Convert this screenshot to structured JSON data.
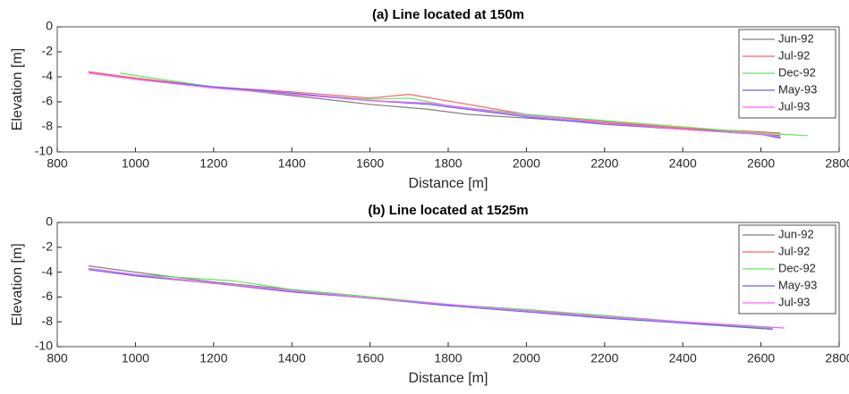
{
  "chart_data": [
    {
      "type": "line",
      "title": "(a) Line located at 150m",
      "xlabel": "Distance [m]",
      "ylabel": "Elevation [m]",
      "xlim": [
        800,
        2800
      ],
      "xticks": [
        800,
        1000,
        1200,
        1400,
        1600,
        1800,
        2000,
        2200,
        2400,
        2600,
        2800
      ],
      "ylim": [
        -10,
        0
      ],
      "yticks": [
        -10,
        -8,
        -6,
        -4,
        -2,
        0
      ],
      "legend": "top-right",
      "series": [
        {
          "name": "Jun-92",
          "color": "#7f7f7f",
          "x": [
            880,
            1000,
            1200,
            1400,
            1600,
            1750,
            1850,
            2000,
            2200,
            2400,
            2600,
            2650
          ],
          "values": [
            -3.6,
            -4.1,
            -4.8,
            -5.5,
            -6.2,
            -6.6,
            -7.0,
            -7.3,
            -7.7,
            -8.1,
            -8.6,
            -8.7
          ]
        },
        {
          "name": "Jul-92",
          "color": "#ff6060",
          "x": [
            880,
            1000,
            1200,
            1400,
            1600,
            1700,
            1850,
            2000,
            2200,
            2400,
            2600,
            2650
          ],
          "values": [
            -3.6,
            -4.1,
            -4.8,
            -5.2,
            -5.7,
            -5.4,
            -6.2,
            -7.0,
            -7.6,
            -8.1,
            -8.4,
            -8.5
          ]
        },
        {
          "name": "Dec-92",
          "color": "#5fe65f",
          "x": [
            960,
            1000,
            1200,
            1400,
            1600,
            1700,
            1800,
            2000,
            2200,
            2400,
            2600,
            2720
          ],
          "values": [
            -3.7,
            -3.9,
            -4.8,
            -5.4,
            -5.8,
            -5.7,
            -6.3,
            -7.0,
            -7.5,
            -8.0,
            -8.5,
            -8.7
          ]
        },
        {
          "name": "May-93",
          "color": "#6060ff",
          "x": [
            880,
            1000,
            1200,
            1400,
            1600,
            1750,
            1850,
            2000,
            2200,
            2400,
            2600,
            2650
          ],
          "values": [
            -3.7,
            -4.2,
            -4.8,
            -5.3,
            -5.9,
            -6.2,
            -6.6,
            -7.2,
            -7.8,
            -8.2,
            -8.6,
            -8.9
          ]
        },
        {
          "name": "Jul-93",
          "color": "#ff60ff",
          "x": [
            880,
            1000,
            1200,
            1400,
            1600,
            1750,
            1850,
            2000,
            2200,
            2400,
            2600,
            2650
          ],
          "values": [
            -3.7,
            -4.2,
            -4.9,
            -5.4,
            -5.9,
            -6.1,
            -6.5,
            -7.1,
            -7.7,
            -8.2,
            -8.6,
            -8.8
          ]
        }
      ]
    },
    {
      "type": "line",
      "title": "(b) Line located at 1525m",
      "xlabel": "Distance [m]",
      "ylabel": "Elevation [m]",
      "xlim": [
        800,
        2800
      ],
      "xticks": [
        800,
        1000,
        1200,
        1400,
        1600,
        1800,
        2000,
        2200,
        2400,
        2600,
        2800
      ],
      "ylim": [
        -10,
        0
      ],
      "yticks": [
        -10,
        -8,
        -6,
        -4,
        -2,
        0
      ],
      "legend": "top-right",
      "series": [
        {
          "name": "Jun-92",
          "color": "#7f7f7f",
          "x": [
            880,
            1000,
            1200,
            1400,
            1600,
            1800,
            2000,
            2200,
            2400,
            2630
          ],
          "values": [
            -3.5,
            -4.0,
            -4.8,
            -5.4,
            -6.0,
            -6.6,
            -7.1,
            -7.6,
            -8.0,
            -8.6
          ]
        },
        {
          "name": "Jul-92",
          "color": "#ff6060",
          "x": [
            880,
            1000,
            1200,
            1400,
            1600,
            1800,
            2000,
            2200,
            2400,
            2630
          ],
          "values": [
            -3.7,
            -4.2,
            -4.9,
            -5.5,
            -6.1,
            -6.6,
            -7.1,
            -7.5,
            -8.0,
            -8.5
          ]
        },
        {
          "name": "Dec-92",
          "color": "#5fe65f",
          "x": [
            880,
            1000,
            1250,
            1400,
            1600,
            1800,
            2000,
            2200,
            2400,
            2630
          ],
          "values": [
            -3.7,
            -4.2,
            -4.7,
            -5.4,
            -6.0,
            -6.6,
            -7.0,
            -7.5,
            -8.0,
            -8.5
          ]
        },
        {
          "name": "May-93",
          "color": "#6060ff",
          "x": [
            880,
            1000,
            1200,
            1400,
            1600,
            1800,
            2000,
            2200,
            2400,
            2630
          ],
          "values": [
            -3.8,
            -4.3,
            -4.9,
            -5.6,
            -6.1,
            -6.7,
            -7.2,
            -7.7,
            -8.1,
            -8.6
          ]
        },
        {
          "name": "Jul-93",
          "color": "#ff60ff",
          "x": [
            880,
            1000,
            1200,
            1400,
            1600,
            1800,
            2000,
            2200,
            2400,
            2660
          ],
          "values": [
            -3.7,
            -4.2,
            -4.9,
            -5.5,
            -6.1,
            -6.6,
            -7.1,
            -7.6,
            -8.0,
            -8.5
          ]
        }
      ]
    }
  ]
}
